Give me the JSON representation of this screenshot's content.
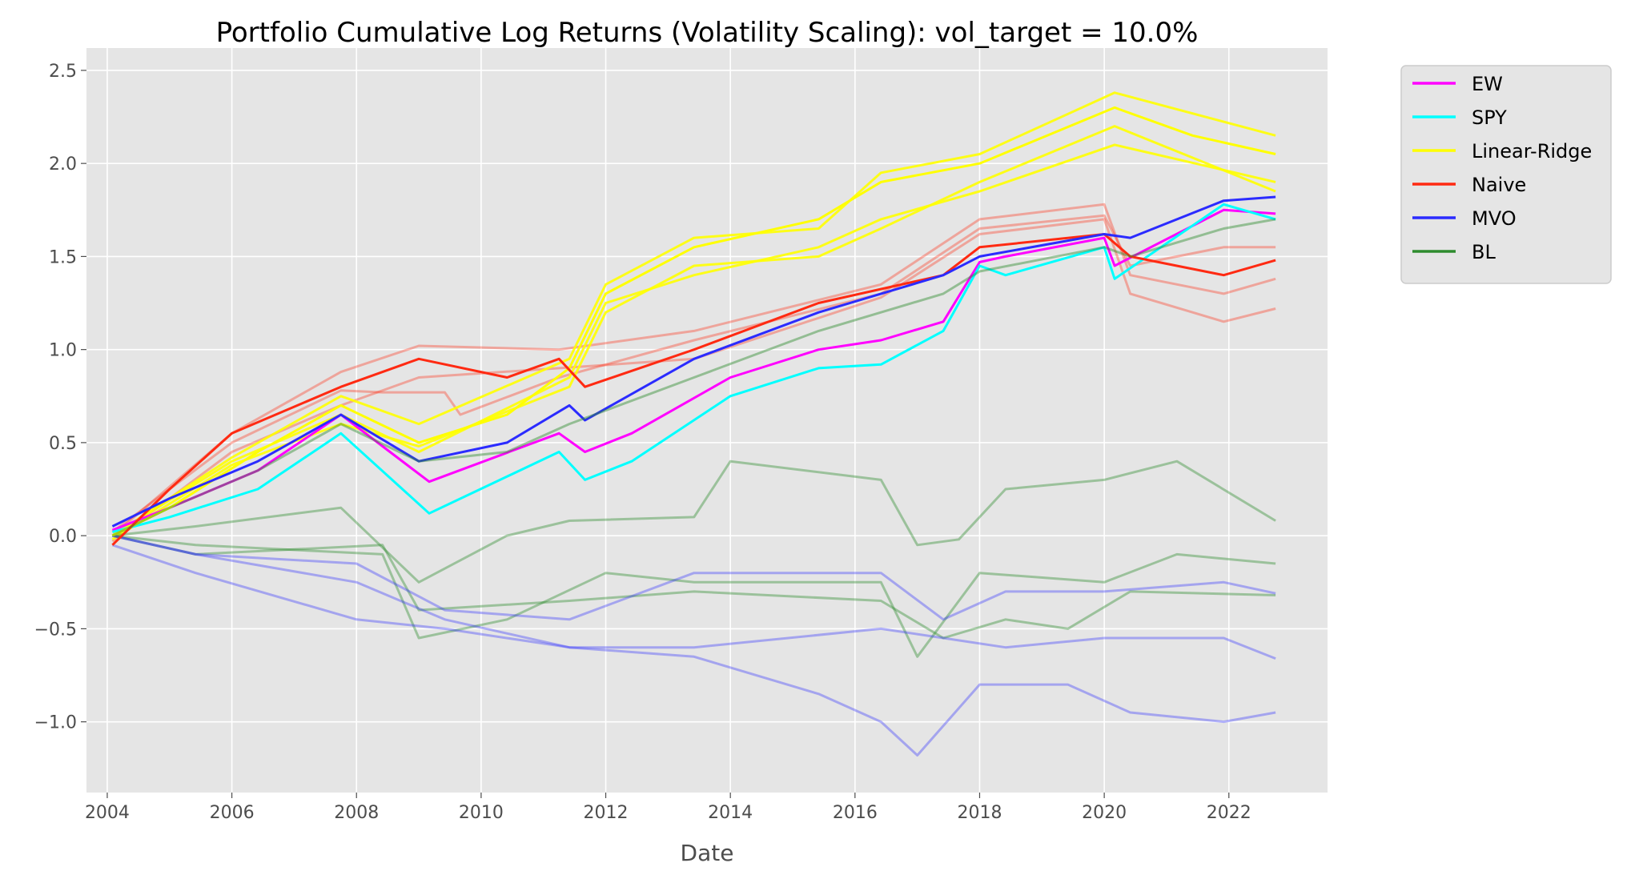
{
  "chart_data": {
    "type": "line",
    "title": "Portfolio Cumulative Log Returns (Volatility Scaling): vol_target = 10.0%",
    "xlabel": "Date",
    "ylabel": "",
    "xlim": [
      "2003-09",
      "2023-08"
    ],
    "ylim": [
      -1.38,
      2.62
    ],
    "x_ticks": [
      "2004",
      "2006",
      "2008",
      "2010",
      "2012",
      "2014",
      "2016",
      "2018",
      "2020",
      "2022"
    ],
    "y_ticks": [
      "2.5",
      "2.0",
      "1.5",
      "1.0",
      "0.5",
      "0.0",
      "−0.5",
      "−1.0"
    ],
    "grid": true,
    "legend_position": "outside upper right",
    "style": {
      "background": "#e5e5e5",
      "grid_color": "#ffffff"
    },
    "series": [
      {
        "name": "EW",
        "color": "#ff00ff",
        "opacity": 1.0,
        "points": [
          [
            "2004-02",
            0.03
          ],
          [
            "2005-01",
            0.15
          ],
          [
            "2006-06",
            0.35
          ],
          [
            "2007-10",
            0.65
          ],
          [
            "2009-03",
            0.29
          ],
          [
            "2011-04",
            0.55
          ],
          [
            "2011-09",
            0.45
          ],
          [
            "2012-06",
            0.55
          ],
          [
            "2014-01",
            0.85
          ],
          [
            "2015-06",
            1.0
          ],
          [
            "2016-06",
            1.05
          ],
          [
            "2017-06",
            1.15
          ],
          [
            "2018-01",
            1.47
          ],
          [
            "2018-06",
            1.5
          ],
          [
            "2020-01",
            1.6
          ],
          [
            "2020-03",
            1.45
          ],
          [
            "2021-12",
            1.75
          ],
          [
            "2022-10",
            1.73
          ]
        ]
      },
      {
        "name": "SPY",
        "color": "#00ffff",
        "opacity": 1.0,
        "points": [
          [
            "2004-02",
            0.02
          ],
          [
            "2005-01",
            0.1
          ],
          [
            "2006-06",
            0.25
          ],
          [
            "2007-10",
            0.55
          ],
          [
            "2009-03",
            0.12
          ],
          [
            "2011-04",
            0.45
          ],
          [
            "2011-09",
            0.3
          ],
          [
            "2012-06",
            0.4
          ],
          [
            "2014-01",
            0.75
          ],
          [
            "2015-06",
            0.9
          ],
          [
            "2016-06",
            0.92
          ],
          [
            "2017-06",
            1.1
          ],
          [
            "2018-01",
            1.45
          ],
          [
            "2018-06",
            1.4
          ],
          [
            "2020-01",
            1.55
          ],
          [
            "2020-03",
            1.38
          ],
          [
            "2021-12",
            1.78
          ],
          [
            "2022-10",
            1.7
          ]
        ]
      },
      {
        "name": "Linear-Ridge",
        "color": "#ffff00",
        "opacity": 1.0,
        "points": [
          [
            "2004-02",
            0.0
          ],
          [
            "2005-01",
            0.15
          ],
          [
            "2006-06",
            0.45
          ],
          [
            "2007-10",
            0.7
          ],
          [
            "2009-01",
            0.5
          ],
          [
            "2010-06",
            0.65
          ],
          [
            "2011-06",
            0.9
          ],
          [
            "2012-01",
            1.3
          ],
          [
            "2013-06",
            1.55
          ],
          [
            "2015-06",
            1.7
          ],
          [
            "2016-06",
            1.9
          ],
          [
            "2018-01",
            2.0
          ],
          [
            "2020-03",
            2.3
          ],
          [
            "2021-06",
            2.15
          ],
          [
            "2022-10",
            2.05
          ]
        ]
      },
      {
        "name": "Naive",
        "color": "#ff2a12",
        "opacity": 1.0,
        "points": [
          [
            "2004-02",
            -0.05
          ],
          [
            "2005-01",
            0.25
          ],
          [
            "2006-01",
            0.55
          ],
          [
            "2007-10",
            0.8
          ],
          [
            "2009-01",
            0.95
          ],
          [
            "2010-06",
            0.85
          ],
          [
            "2011-04",
            0.95
          ],
          [
            "2011-09",
            0.8
          ],
          [
            "2013-06",
            1.0
          ],
          [
            "2015-06",
            1.25
          ],
          [
            "2017-06",
            1.4
          ],
          [
            "2018-01",
            1.55
          ],
          [
            "2020-01",
            1.62
          ],
          [
            "2020-06",
            1.5
          ],
          [
            "2021-12",
            1.4
          ],
          [
            "2022-10",
            1.48
          ]
        ]
      },
      {
        "name": "MVO",
        "color": "#2b2bff",
        "opacity": 1.0,
        "points": [
          [
            "2004-02",
            0.05
          ],
          [
            "2005-01",
            0.2
          ],
          [
            "2006-06",
            0.4
          ],
          [
            "2007-10",
            0.65
          ],
          [
            "2009-01",
            0.4
          ],
          [
            "2010-06",
            0.5
          ],
          [
            "2011-06",
            0.7
          ],
          [
            "2011-09",
            0.62
          ],
          [
            "2013-06",
            0.95
          ],
          [
            "2015-06",
            1.2
          ],
          [
            "2017-06",
            1.4
          ],
          [
            "2018-01",
            1.5
          ],
          [
            "2020-01",
            1.62
          ],
          [
            "2020-06",
            1.6
          ],
          [
            "2021-12",
            1.8
          ],
          [
            "2022-10",
            1.82
          ]
        ]
      },
      {
        "name": "BL",
        "color": "#2e8b2e",
        "opacity": 0.45,
        "points": [
          [
            "2004-02",
            0.0
          ],
          [
            "2005-01",
            0.15
          ],
          [
            "2006-06",
            0.35
          ],
          [
            "2007-10",
            0.6
          ],
          [
            "2009-01",
            0.4
          ],
          [
            "2010-06",
            0.45
          ],
          [
            "2011-06",
            0.6
          ],
          [
            "2013-06",
            0.85
          ],
          [
            "2015-06",
            1.1
          ],
          [
            "2017-06",
            1.3
          ],
          [
            "2018-01",
            1.42
          ],
          [
            "2020-01",
            1.55
          ],
          [
            "2020-06",
            1.5
          ],
          [
            "2021-12",
            1.65
          ],
          [
            "2022-10",
            1.7
          ]
        ]
      },
      {
        "name": "",
        "color": "#ff2a12",
        "opacity": 0.35,
        "points": [
          [
            "2004-02",
            0.0
          ],
          [
            "2006-01",
            0.55
          ],
          [
            "2007-10",
            0.88
          ],
          [
            "2009-01",
            1.02
          ],
          [
            "2011-04",
            1.0
          ],
          [
            "2013-06",
            1.1
          ],
          [
            "2016-06",
            1.35
          ],
          [
            "2018-01",
            1.7
          ],
          [
            "2020-01",
            1.78
          ],
          [
            "2020-06",
            1.4
          ],
          [
            "2021-12",
            1.3
          ],
          [
            "2022-10",
            1.38
          ]
        ]
      },
      {
        "name": "",
        "color": "#ff2a12",
        "opacity": 0.35,
        "points": [
          [
            "2004-02",
            -0.03
          ],
          [
            "2006-01",
            0.45
          ],
          [
            "2007-10",
            0.7
          ],
          [
            "2009-01",
            0.85
          ],
          [
            "2011-04",
            0.9
          ],
          [
            "2013-06",
            0.95
          ],
          [
            "2016-06",
            1.28
          ],
          [
            "2018-01",
            1.62
          ],
          [
            "2020-01",
            1.7
          ],
          [
            "2020-06",
            1.3
          ],
          [
            "2021-12",
            1.15
          ],
          [
            "2022-10",
            1.22
          ]
        ]
      },
      {
        "name": "",
        "color": "#ff2a12",
        "opacity": 0.35,
        "points": [
          [
            "2004-02",
            0.02
          ],
          [
            "2006-01",
            0.5
          ],
          [
            "2007-10",
            0.78
          ],
          [
            "2008-06",
            0.77
          ],
          [
            "2009-06",
            0.77
          ],
          [
            "2009-09",
            0.65
          ],
          [
            "2011-04",
            0.85
          ],
          [
            "2013-06",
            1.05
          ],
          [
            "2016-06",
            1.3
          ],
          [
            "2018-01",
            1.65
          ],
          [
            "2020-01",
            1.72
          ],
          [
            "2020-06",
            1.45
          ],
          [
            "2021-12",
            1.55
          ],
          [
            "2022-10",
            1.55
          ]
        ]
      },
      {
        "name": "",
        "color": "#ffff00",
        "opacity": 0.9,
        "points": [
          [
            "2004-02",
            0.0
          ],
          [
            "2006-01",
            0.4
          ],
          [
            "2007-10",
            0.65
          ],
          [
            "2009-01",
            0.45
          ],
          [
            "2011-06",
            0.85
          ],
          [
            "2012-01",
            1.25
          ],
          [
            "2013-06",
            1.4
          ],
          [
            "2015-06",
            1.55
          ],
          [
            "2016-06",
            1.7
          ],
          [
            "2018-01",
            1.85
          ],
          [
            "2020-03",
            2.1
          ],
          [
            "2022-10",
            1.9
          ]
        ]
      },
      {
        "name": "",
        "color": "#ffff00",
        "opacity": 0.9,
        "points": [
          [
            "2004-02",
            0.0
          ],
          [
            "2006-01",
            0.42
          ],
          [
            "2007-10",
            0.75
          ],
          [
            "2009-01",
            0.6
          ],
          [
            "2011-06",
            0.95
          ],
          [
            "2012-01",
            1.35
          ],
          [
            "2013-06",
            1.6
          ],
          [
            "2015-06",
            1.65
          ],
          [
            "2016-06",
            1.95
          ],
          [
            "2018-01",
            2.05
          ],
          [
            "2020-03",
            2.38
          ],
          [
            "2022-10",
            2.15
          ]
        ]
      },
      {
        "name": "",
        "color": "#ffff00",
        "opacity": 0.9,
        "points": [
          [
            "2004-02",
            -0.02
          ],
          [
            "2006-01",
            0.38
          ],
          [
            "2007-10",
            0.6
          ],
          [
            "2009-01",
            0.48
          ],
          [
            "2011-06",
            0.8
          ],
          [
            "2012-01",
            1.2
          ],
          [
            "2013-06",
            1.45
          ],
          [
            "2015-06",
            1.5
          ],
          [
            "2016-06",
            1.65
          ],
          [
            "2018-01",
            1.9
          ],
          [
            "2020-03",
            2.2
          ],
          [
            "2022-10",
            1.85
          ]
        ]
      },
      {
        "name": "",
        "color": "#2e8b2e",
        "opacity": 0.4,
        "points": [
          [
            "2004-02",
            0.0
          ],
          [
            "2005-06",
            0.05
          ],
          [
            "2007-10",
            0.15
          ],
          [
            "2009-01",
            -0.25
          ],
          [
            "2010-06",
            0.0
          ],
          [
            "2011-06",
            0.08
          ],
          [
            "2013-06",
            0.1
          ],
          [
            "2014-01",
            0.4
          ],
          [
            "2016-06",
            0.3
          ],
          [
            "2017-01",
            -0.05
          ],
          [
            "2017-09",
            -0.02
          ],
          [
            "2018-06",
            0.25
          ],
          [
            "2020-01",
            0.3
          ],
          [
            "2021-03",
            0.4
          ],
          [
            "2022-10",
            0.08
          ]
        ]
      },
      {
        "name": "",
        "color": "#2e8b2e",
        "opacity": 0.4,
        "points": [
          [
            "2004-02",
            0.0
          ],
          [
            "2005-06",
            -0.05
          ],
          [
            "2008-06",
            -0.1
          ],
          [
            "2009-01",
            -0.55
          ],
          [
            "2010-06",
            -0.45
          ],
          [
            "2012-01",
            -0.2
          ],
          [
            "2013-06",
            -0.25
          ],
          [
            "2016-06",
            -0.25
          ],
          [
            "2017-01",
            -0.65
          ],
          [
            "2018-01",
            -0.2
          ],
          [
            "2020-01",
            -0.25
          ],
          [
            "2021-03",
            -0.1
          ],
          [
            "2022-10",
            -0.15
          ]
        ]
      },
      {
        "name": "",
        "color": "#2e8b2e",
        "opacity": 0.4,
        "points": [
          [
            "2004-02",
            0.0
          ],
          [
            "2005-06",
            -0.1
          ],
          [
            "2008-06",
            -0.05
          ],
          [
            "2009-01",
            -0.4
          ],
          [
            "2011-06",
            -0.35
          ],
          [
            "2013-06",
            -0.3
          ],
          [
            "2016-06",
            -0.35
          ],
          [
            "2017-06",
            -0.55
          ],
          [
            "2018-06",
            -0.45
          ],
          [
            "2019-06",
            -0.5
          ],
          [
            "2020-06",
            -0.3
          ],
          [
            "2022-10",
            -0.32
          ]
        ]
      },
      {
        "name": "",
        "color": "#2b2bff",
        "opacity": 0.35,
        "points": [
          [
            "2004-02",
            0.0
          ],
          [
            "2005-06",
            -0.1
          ],
          [
            "2008-01",
            -0.15
          ],
          [
            "2009-06",
            -0.4
          ],
          [
            "2011-06",
            -0.45
          ],
          [
            "2013-06",
            -0.2
          ],
          [
            "2016-06",
            -0.2
          ],
          [
            "2017-06",
            -0.45
          ],
          [
            "2018-06",
            -0.3
          ],
          [
            "2020-01",
            -0.3
          ],
          [
            "2021-12",
            -0.25
          ],
          [
            "2022-10",
            -0.31
          ]
        ]
      },
      {
        "name": "",
        "color": "#2b2bff",
        "opacity": 0.35,
        "points": [
          [
            "2004-02",
            -0.05
          ],
          [
            "2005-06",
            -0.2
          ],
          [
            "2008-01",
            -0.45
          ],
          [
            "2009-06",
            -0.5
          ],
          [
            "2011-06",
            -0.6
          ],
          [
            "2013-06",
            -0.6
          ],
          [
            "2016-06",
            -0.5
          ],
          [
            "2017-06",
            -0.55
          ],
          [
            "2018-06",
            -0.6
          ],
          [
            "2020-01",
            -0.55
          ],
          [
            "2021-12",
            -0.55
          ],
          [
            "2022-10",
            -0.66
          ]
        ]
      },
      {
        "name": "",
        "color": "#2b2bff",
        "opacity": 0.35,
        "points": [
          [
            "2004-02",
            0.0
          ],
          [
            "2005-06",
            -0.1
          ],
          [
            "2008-01",
            -0.25
          ],
          [
            "2009-06",
            -0.45
          ],
          [
            "2011-06",
            -0.6
          ],
          [
            "2013-06",
            -0.65
          ],
          [
            "2015-06",
            -0.85
          ],
          [
            "2016-06",
            -1.0
          ],
          [
            "2017-01",
            -1.18
          ],
          [
            "2018-01",
            -0.8
          ],
          [
            "2019-06",
            -0.8
          ],
          [
            "2020-06",
            -0.95
          ],
          [
            "2021-12",
            -1.0
          ],
          [
            "2022-10",
            -0.95
          ]
        ]
      }
    ]
  }
}
